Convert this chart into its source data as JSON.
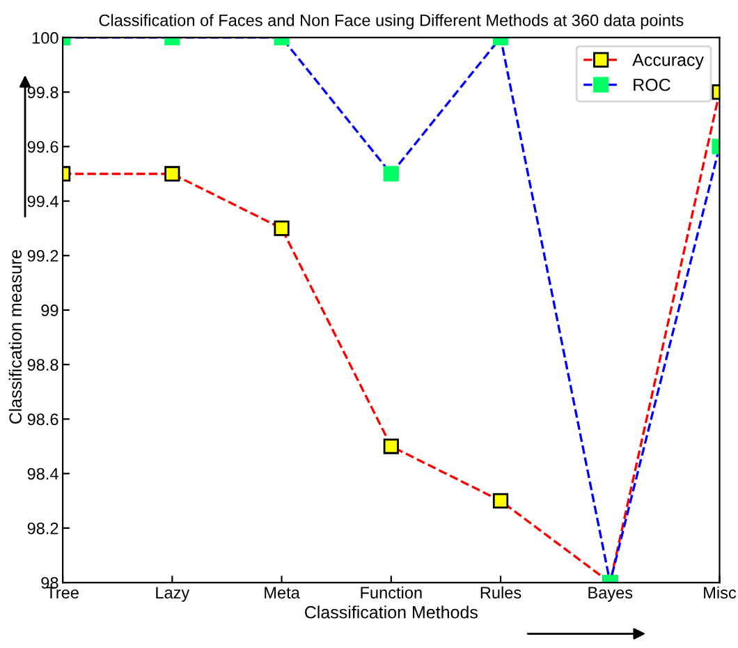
{
  "chart_data": {
    "type": "line",
    "title": "Classification of Faces and Non Face using Different Methods at 360 data points",
    "xlabel": "Classification Methods",
    "ylabel": "Classification measure",
    "categories": [
      "Tree",
      "Lazy",
      "Meta",
      "Function",
      "Rules",
      "Bayes",
      "Misc"
    ],
    "series": [
      {
        "name": "Accuracy",
        "color": "#ff0000",
        "values": [
          99.5,
          99.5,
          99.3,
          98.5,
          98.3,
          98,
          99.8
        ]
      },
      {
        "name": "ROC",
        "color": "#0000ff",
        "values": [
          100,
          100,
          100,
          99.5,
          100,
          98,
          99.6
        ]
      }
    ],
    "ylim": [
      98,
      100
    ],
    "yticks": [
      98,
      98.2,
      98.4,
      98.6,
      98.8,
      99,
      99.2,
      99.4,
      99.6,
      99.8,
      100
    ],
    "legend": "top right",
    "marker": "square",
    "line_style": "dashed",
    "grid": false
  }
}
